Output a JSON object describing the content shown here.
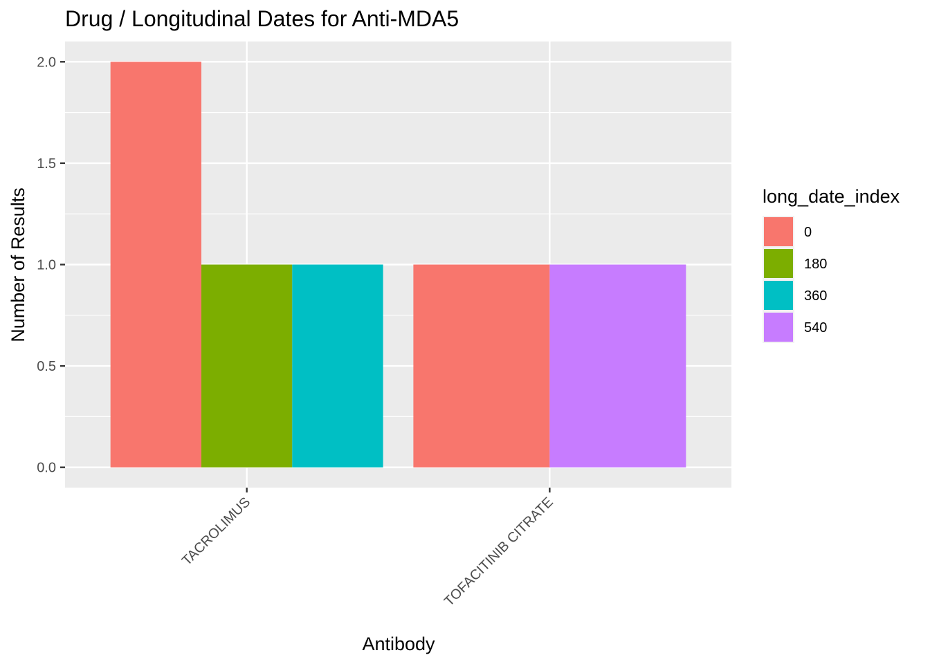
{
  "chart_data": {
    "type": "bar",
    "title": "Drug / Longitudinal Dates for Anti-MDA5",
    "xlabel": "Antibody",
    "ylabel": "Number of Results",
    "categories": [
      "TACROLIMUS",
      "TOFACITINIB CITRATE"
    ],
    "y_ticks": [
      "0.0",
      "0.5",
      "1.0",
      "1.5",
      "2.0"
    ],
    "ylim": [
      -0.1,
      2.1
    ],
    "grid": true,
    "legend_position": "right",
    "legend_title": "long_date_index",
    "series": [
      {
        "name": "0",
        "color": "#F8766D",
        "values": [
          2,
          1
        ]
      },
      {
        "name": "180",
        "color": "#7CAE00",
        "values": [
          1,
          null
        ]
      },
      {
        "name": "360",
        "color": "#00BFC4",
        "values": [
          1,
          null
        ]
      },
      {
        "name": "540",
        "color": "#C77CFF",
        "values": [
          null,
          1
        ]
      }
    ]
  }
}
